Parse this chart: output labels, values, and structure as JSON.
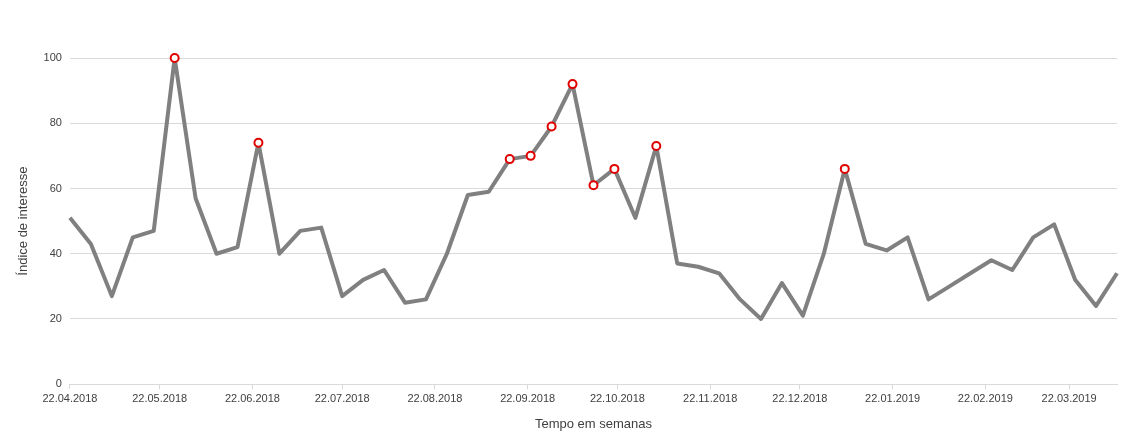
{
  "chart_data": {
    "type": "line",
    "xlabel": "Tempo em semanas",
    "ylabel": "Índice de interesse",
    "x": [
      "2018-04-22",
      "2018-04-29",
      "2018-05-06",
      "2018-05-13",
      "2018-05-20",
      "2018-05-27",
      "2018-06-03",
      "2018-06-10",
      "2018-06-17",
      "2018-06-24",
      "2018-07-01",
      "2018-07-08",
      "2018-07-15",
      "2018-07-22",
      "2018-07-29",
      "2018-08-05",
      "2018-08-12",
      "2018-08-19",
      "2018-08-26",
      "2018-09-02",
      "2018-09-09",
      "2018-09-16",
      "2018-09-23",
      "2018-09-30",
      "2018-10-07",
      "2018-10-14",
      "2018-10-21",
      "2018-10-28",
      "2018-11-04",
      "2018-11-11",
      "2018-11-18",
      "2018-11-25",
      "2018-12-02",
      "2018-12-09",
      "2018-12-16",
      "2018-12-23",
      "2018-12-30",
      "2019-01-06",
      "2019-01-13",
      "2019-01-20",
      "2019-01-27",
      "2019-02-03",
      "2019-02-10",
      "2019-02-17",
      "2019-02-24",
      "2019-03-03",
      "2019-03-10",
      "2019-03-17",
      "2019-03-24",
      "2019-03-31",
      "2019-04-07"
    ],
    "series": [
      {
        "color": "#808080",
        "marker": "none",
        "values": [
          51,
          43,
          27,
          45,
          47,
          100,
          57,
          40,
          42,
          74,
          40,
          47,
          48,
          27,
          32,
          35,
          25,
          26,
          40,
          58,
          59,
          69,
          70,
          79,
          92,
          61,
          66,
          51,
          73,
          37,
          36,
          34,
          26,
          20,
          31,
          21,
          40,
          66,
          43,
          41,
          45,
          26,
          30,
          34,
          38,
          35,
          45,
          49,
          32,
          24,
          34
        ]
      },
      {
        "type": "scatter",
        "color": "#e00000",
        "marker": "circle",
        "x": [
          "2018-05-27",
          "2018-06-24",
          "2018-09-16",
          "2018-09-23",
          "2018-09-30",
          "2018-10-07",
          "2018-10-14",
          "2018-10-21",
          "2018-11-04",
          "2019-01-06"
        ],
        "values": [
          100,
          74,
          69,
          70,
          79,
          92,
          61,
          66,
          73,
          66
        ]
      }
    ],
    "xlim": [
      "2018-04-22",
      "2019-04-07"
    ],
    "xticks": [
      {
        "value": "2018-04-22",
        "label": "22.04.2018"
      },
      {
        "value": "2018-05-22",
        "label": "22.05.2018"
      },
      {
        "value": "2018-06-22",
        "label": "22.06.2018"
      },
      {
        "value": "2018-07-22",
        "label": "22.07.2018"
      },
      {
        "value": "2018-08-22",
        "label": "22.08.2018"
      },
      {
        "value": "2018-09-22",
        "label": "22.09.2018"
      },
      {
        "value": "2018-10-22",
        "label": "22.10.2018"
      },
      {
        "value": "2018-11-22",
        "label": "22.11.2018"
      },
      {
        "value": "2018-12-22",
        "label": "22.12.2018"
      },
      {
        "value": "2019-01-22",
        "label": "22.01.2019"
      },
      {
        "value": "2019-02-22",
        "label": "22.02.2019"
      },
      {
        "value": "2019-03-22",
        "label": "22.03.2019"
      }
    ],
    "ylim": [
      0,
      100
    ],
    "yticks": [
      0,
      20,
      40,
      60,
      80,
      100
    ],
    "grid": "y",
    "line_style": "solid"
  }
}
